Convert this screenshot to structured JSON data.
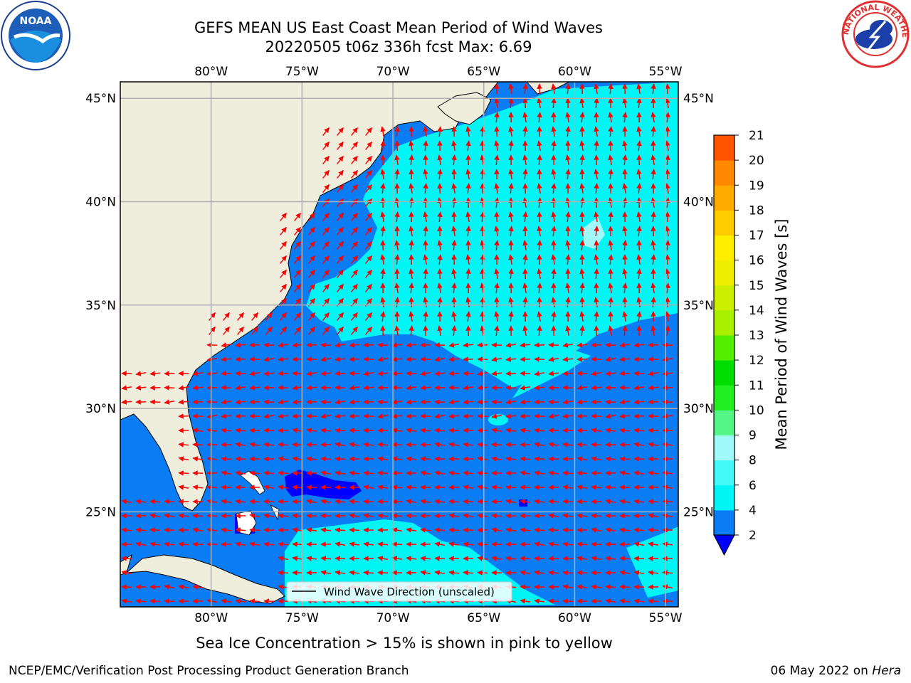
{
  "header": {
    "title_line1": "GEFS MEAN US East Coast Mean Period of Wind Waves",
    "title_line2": "20220505 t06z 336h fcst   Max: 6.69",
    "left_logo_text": "NOAA",
    "right_logo_text": "NATIONAL WEATHER SERVICE"
  },
  "map": {
    "lon_labels": [
      "80°W",
      "75°W",
      "70°W",
      "65°W",
      "60°W",
      "55°W"
    ],
    "lat_labels": [
      "45°N",
      "40°N",
      "35°N",
      "30°N",
      "25°N"
    ],
    "lon_values": [
      -80,
      -75,
      -70,
      -65,
      -60,
      -55
    ],
    "lat_values": [
      45,
      40,
      35,
      30,
      25
    ],
    "extent": {
      "lon_min": -85,
      "lon_max": -54.3,
      "lat_min": 20.4,
      "lat_max": 45.8
    },
    "legend_label": "Wind Wave Direction (unscaled)",
    "colors": {
      "land": "#efeddc",
      "blue": "#0a7df5",
      "cyan": "#00f5f5",
      "arrow": "#ff0000",
      "grid": "#b0b0b0"
    }
  },
  "colorbar": {
    "label": "Mean Period of Wind Waves [s]",
    "ticks": [
      "2",
      "4",
      "6",
      "8",
      "9",
      "10",
      "11",
      "12",
      "13",
      "14",
      "15",
      "16",
      "17",
      "18",
      "19",
      "20",
      "21"
    ],
    "colors": [
      "#0a7df5",
      "#00f5f5",
      "#44f8f8",
      "#a0fafa",
      "#55f587",
      "#22ee22",
      "#00dd00",
      "#55ee00",
      "#aaee00",
      "#ccee00",
      "#eeee00",
      "#ffee00",
      "#ffcc00",
      "#ffaa00",
      "#ff8800",
      "#ff5500",
      "#ff2200",
      "#ff0000"
    ],
    "under_color": "#0000ff"
  },
  "footer": {
    "sea_ice_note": "Sea Ice Concentration > 15% is shown in pink to yellow",
    "credit": "NCEP/EMC/Verification Post Processing Product Generation Branch",
    "date": "06 May 2022 on",
    "host": "Hera"
  }
}
